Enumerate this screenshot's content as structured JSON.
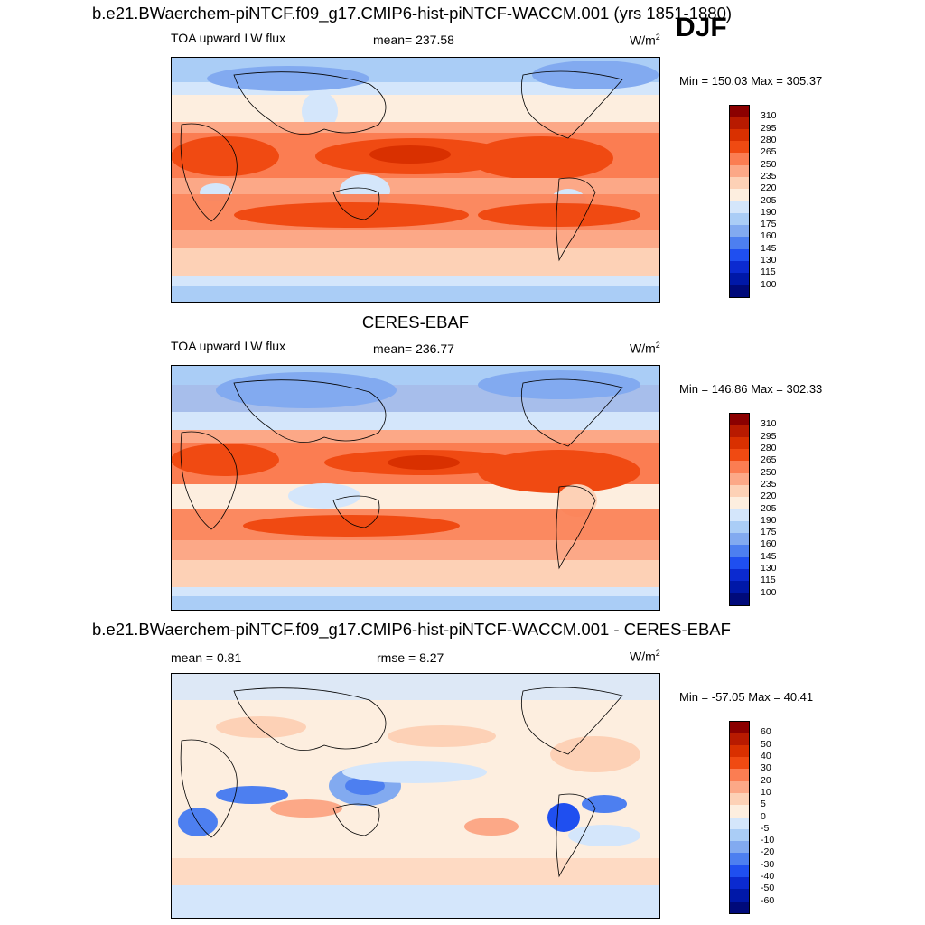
{
  "figure": {
    "title": "b.e21.BWaerchem-piNTCF.f09_g17.CMIP6-hist-piNTCF-WACCM.001 (yrs 1851-1880)",
    "season": "DJF"
  },
  "panels": [
    {
      "id": "model",
      "left_label": "TOA upward LW flux",
      "center_label": "mean= 237.58",
      "units": "W/m",
      "units_exp": "2",
      "minmax": "Min = 150.03 Max = 305.37",
      "colorbar": {
        "levels": [
          "310",
          "295",
          "280",
          "265",
          "250",
          "235",
          "220",
          "205",
          "190",
          "175",
          "160",
          "145",
          "130",
          "115",
          "100"
        ],
        "colors": [
          "#8b0000",
          "#b81a00",
          "#d93000",
          "#f04a12",
          "#fb7d52",
          "#fca887",
          "#fdd1b6",
          "#fdeedf",
          "#d4e6fb",
          "#aacdf6",
          "#82aaf0",
          "#4d7ff0",
          "#1f4ff0",
          "#0b2ad0",
          "#0018a8",
          "#000a7a"
        ]
      }
    },
    {
      "id": "obs",
      "panel_title": "CERES-EBAF",
      "left_label": "TOA upward LW flux",
      "center_label": "mean= 236.77",
      "units": "W/m",
      "units_exp": "2",
      "minmax": "Min = 146.86 Max = 302.33",
      "colorbar": {
        "levels": [
          "310",
          "295",
          "280",
          "265",
          "250",
          "235",
          "220",
          "205",
          "190",
          "175",
          "160",
          "145",
          "130",
          "115",
          "100"
        ],
        "colors": [
          "#8b0000",
          "#b81a00",
          "#d93000",
          "#f04a12",
          "#fb7d52",
          "#fca887",
          "#fdd1b6",
          "#fdeedf",
          "#d4e6fb",
          "#aacdf6",
          "#82aaf0",
          "#4d7ff0",
          "#1f4ff0",
          "#0b2ad0",
          "#0018a8",
          "#000a7a"
        ]
      }
    },
    {
      "id": "diff",
      "panel_title": "b.e21.BWaerchem-piNTCF.f09_g17.CMIP6-hist-piNTCF-WACCM.001 - CERES-EBAF",
      "left_label": "mean =   0.81",
      "center_label": "rmse =   8.27",
      "units": "W/m",
      "units_exp": "2",
      "minmax": "Min = -57.05 Max =  40.41",
      "colorbar": {
        "levels": [
          "60",
          "50",
          "40",
          "30",
          "20",
          "10",
          "5",
          "0",
          "-5",
          "-10",
          "-20",
          "-30",
          "-40",
          "-50",
          "-60"
        ],
        "colors": [
          "#8b0000",
          "#b81a00",
          "#d93000",
          "#f04a12",
          "#fb7d52",
          "#fca887",
          "#fdd1b6",
          "#fdeedf",
          "#d4e6fb",
          "#aacdf6",
          "#82aaf0",
          "#4d7ff0",
          "#1f4ff0",
          "#0b2ad0",
          "#0018a8",
          "#000a7a"
        ]
      }
    }
  ]
}
